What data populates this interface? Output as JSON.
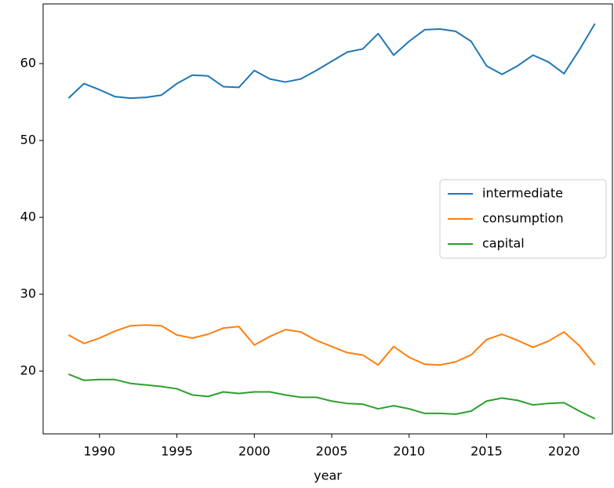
{
  "chart_data": {
    "type": "line",
    "x_label": "year",
    "x": [
      1988,
      1989,
      1990,
      1991,
      1992,
      1993,
      1994,
      1995,
      1996,
      1997,
      1998,
      1999,
      2000,
      2001,
      2002,
      2003,
      2004,
      2005,
      2006,
      2007,
      2008,
      2009,
      2010,
      2011,
      2012,
      2013,
      2014,
      2015,
      2016,
      2017,
      2018,
      2019,
      2020,
      2021,
      2022
    ],
    "series": [
      {
        "name": "intermediate",
        "color": "#1f77b4",
        "values": [
          55.5,
          57.4,
          56.6,
          55.7,
          55.5,
          55.6,
          55.9,
          57.4,
          58.5,
          58.4,
          57.0,
          56.9,
          59.1,
          58.0,
          57.6,
          58.0,
          59.1,
          60.3,
          61.5,
          61.9,
          63.9,
          61.1,
          62.9,
          64.4,
          64.5,
          64.2,
          62.9,
          59.7,
          58.6,
          59.7,
          61.1,
          60.2,
          58.7,
          61.8,
          65.2
        ]
      },
      {
        "name": "consumption",
        "color": "#ff7f0e",
        "values": [
          24.7,
          23.6,
          24.3,
          25.2,
          25.9,
          26.0,
          25.9,
          24.7,
          24.3,
          24.8,
          25.6,
          25.8,
          23.4,
          24.5,
          25.4,
          25.1,
          24.0,
          23.2,
          22.4,
          22.1,
          20.8,
          23.2,
          21.8,
          20.9,
          20.8,
          21.2,
          22.1,
          24.1,
          24.8,
          24.0,
          23.1,
          23.9,
          25.1,
          23.3,
          20.8
        ]
      },
      {
        "name": "capital",
        "color": "#2ca02c",
        "values": [
          19.6,
          18.8,
          18.9,
          18.9,
          18.4,
          18.2,
          18.0,
          17.7,
          16.9,
          16.7,
          17.3,
          17.1,
          17.3,
          17.3,
          16.9,
          16.6,
          16.6,
          16.1,
          15.8,
          15.7,
          15.1,
          15.5,
          15.1,
          14.5,
          14.5,
          14.4,
          14.8,
          16.1,
          16.5,
          16.2,
          15.6,
          15.8,
          15.9,
          14.8,
          13.8
        ]
      }
    ],
    "xlim": [
      1986.36,
      2023.13
    ],
    "xticks": [
      1990,
      1995,
      2000,
      2005,
      2010,
      2015,
      2020
    ],
    "ylim": [
      11.84,
      67.76
    ],
    "yticks": [
      20,
      30,
      40,
      50,
      60
    ],
    "legend": "center right",
    "grid": false
  }
}
